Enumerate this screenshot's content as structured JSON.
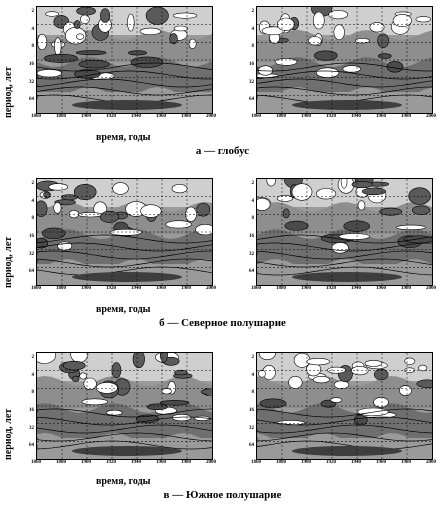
{
  "figure": {
    "rows": [
      {
        "ylabel": "период, лет",
        "xlabel": "время, годы",
        "caption": "а — глобус"
      },
      {
        "ylabel": "период, лет",
        "xlabel": "время, годы",
        "caption": "б — Северное полушарие"
      },
      {
        "ylabel": "период, лет",
        "xlabel": "время, годы",
        "caption": "в — Южное полушарие"
      }
    ],
    "y_ticks": [
      "2",
      "4",
      "8",
      "16",
      "32",
      "64"
    ],
    "x_ticks": [
      "1860",
      "1880",
      "1900",
      "1920",
      "1940",
      "1960",
      "1980",
      "2000"
    ]
  }
}
